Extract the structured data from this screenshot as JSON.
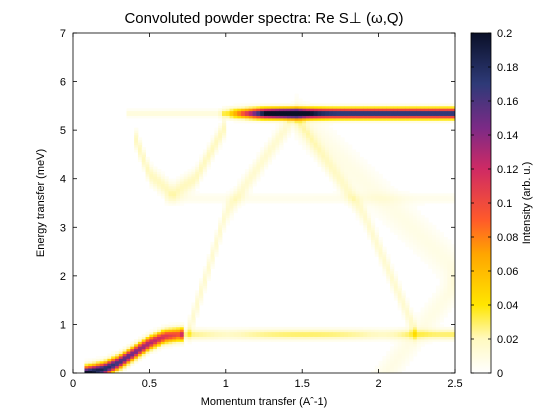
{
  "chart_data": {
    "type": "heatmap",
    "title": "Convoluted powder spectra: Re S⊥ (ω,Q)",
    "xlabel": "Momentum transfer (Aˆ-1)",
    "ylabel": "Energy transfer (meV)",
    "colorbar_label": "Intensity (arb. u.)",
    "xlim": [
      0,
      2.5
    ],
    "ylim": [
      0,
      7
    ],
    "clim": [
      0,
      0.2
    ],
    "x_ticks": [
      0,
      0.5,
      1,
      1.5,
      2,
      2.5
    ],
    "x_tick_labels": [
      "0",
      "0.5",
      "1",
      "1.5",
      "2",
      "2.5"
    ],
    "y_ticks": [
      0,
      1,
      2,
      3,
      4,
      5,
      6,
      7
    ],
    "y_tick_labels": [
      "0",
      "1",
      "2",
      "3",
      "4",
      "5",
      "6",
      "7"
    ],
    "colorbar_ticks": [
      0,
      0.02,
      0.04,
      0.06,
      0.08,
      0.1,
      0.12,
      0.14,
      0.16,
      0.18,
      0.2
    ],
    "colorbar_tick_labels": [
      "0",
      "0.02",
      "0.04",
      "0.06",
      "0.08",
      "0.1",
      "0.12",
      "0.14",
      "0.16",
      "0.18",
      "0.2"
    ],
    "colormap": [
      "#ffffff",
      "#fff9c0",
      "#ffe600",
      "#ffa500",
      "#ff5a2a",
      "#cf2a64",
      "#7c2a86",
      "#2e3a78",
      "#0a1028"
    ],
    "features": [
      {
        "feature": "acoustic-branch",
        "Q": [
          0.08,
          0.2,
          0.3,
          0.4,
          0.5,
          0.6,
          0.7
        ],
        "E": [
          0.0,
          0.08,
          0.22,
          0.42,
          0.62,
          0.76,
          0.8
        ],
        "peak_intensity": 0.2
      },
      {
        "feature": "flat-band-low",
        "E": 0.8,
        "Q_range": [
          0.7,
          2.5
        ],
        "peak_intensity": 0.03
      },
      {
        "feature": "flat-band-high",
        "E": 5.35,
        "Q_range": [
          1.0,
          2.5
        ],
        "peak_intensity": 0.18
      },
      {
        "feature": "dispersive-arch",
        "Q": [
          0.4,
          0.5,
          0.65,
          0.8,
          1.0
        ],
        "E": [
          4.9,
          4.1,
          3.7,
          4.0,
          5.1
        ],
        "peak_intensity": 0.02
      },
      {
        "feature": "cosine-band",
        "Q": [
          0.75,
          1.0,
          1.45,
          1.9,
          2.25
        ],
        "E": [
          0.8,
          3.3,
          5.3,
          3.3,
          0.8
        ],
        "peak_intensity": 0.015
      },
      {
        "feature": "flat-band-mid",
        "E": 3.6,
        "Q_range": [
          0.6,
          2.5
        ],
        "peak_intensity": 0.01
      }
    ]
  }
}
